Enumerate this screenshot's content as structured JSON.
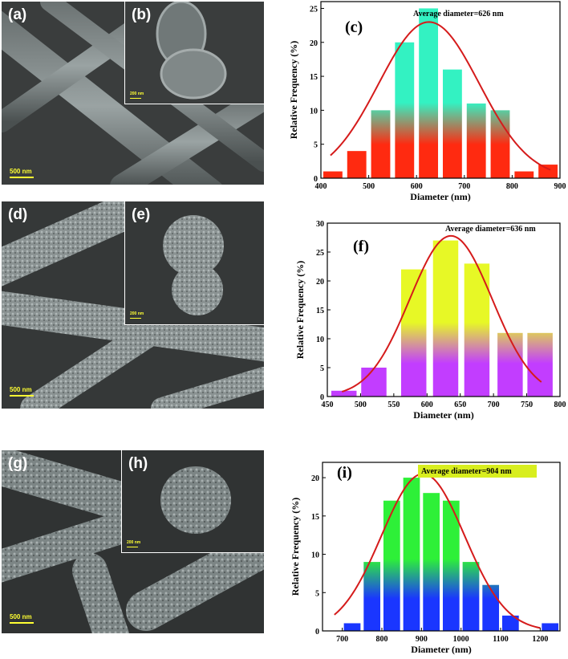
{
  "sem_panels": [
    {
      "main_label": "(a)",
      "inset_label": "(b)",
      "main_scale": "500 nm",
      "inset_scale": "200 nm",
      "style": "smooth"
    },
    {
      "main_label": "(d)",
      "inset_label": "(e)",
      "main_scale": "500 nm",
      "inset_scale": "200 nm",
      "style": "rough"
    },
    {
      "main_label": "(g)",
      "inset_label": "(h)",
      "main_scale": "500 nm",
      "inset_scale": "200 nm",
      "style": "rough"
    }
  ],
  "chart_data": [
    {
      "type": "bar",
      "panel_label": "(c)",
      "annotation": "Average diameter=626 nm",
      "xlabel": "Diameter (nm)",
      "ylabel": "Relative Frequency (%)",
      "xlim": [
        400,
        900
      ],
      "ylim": [
        0,
        26
      ],
      "xticks": [
        400,
        500,
        600,
        700,
        800,
        900
      ],
      "yticks": [
        0,
        5,
        10,
        15,
        20,
        25
      ],
      "bar_width": 40,
      "x": [
        425,
        475,
        525,
        575,
        625,
        675,
        725,
        775,
        825,
        875
      ],
      "values": [
        1,
        4,
        10,
        20,
        25,
        16,
        11,
        10,
        1,
        2
      ],
      "fit_curve": {
        "type": "gaussian",
        "mean": 626,
        "sigma": 105,
        "peak": 23,
        "x_range": [
          420,
          880
        ]
      },
      "colors": {
        "top": "#33f2c2",
        "bottom": "#ff2a10",
        "curve": "#d51b1b"
      }
    },
    {
      "type": "bar",
      "panel_label": "(f)",
      "annotation": "Average diameter=636 nm",
      "xlabel": "Diameter (nm)",
      "ylabel": "Relative Frequency (%)",
      "xlim": [
        450,
        800
      ],
      "ylim": [
        0,
        30
      ],
      "xticks": [
        450,
        500,
        550,
        600,
        650,
        700,
        750,
        800
      ],
      "yticks": [
        0,
        5,
        10,
        15,
        20,
        25,
        30
      ],
      "bar_width": 38,
      "x": [
        475,
        520,
        580,
        628,
        675,
        725,
        770
      ],
      "values": [
        1,
        5,
        22,
        27,
        23,
        11,
        11
      ],
      "fit_curve": {
        "type": "gaussian",
        "mean": 636,
        "sigma": 62,
        "peak": 27.8,
        "x_range": [
          472,
          772
        ]
      },
      "colors": {
        "top": "#e7f826",
        "bottom": "#c23dff",
        "curve": "#d51b1b"
      }
    },
    {
      "type": "bar",
      "panel_label": "(i)",
      "annotation": "Average diameter=904 nm",
      "xlabel": "Diameter (nm)",
      "ylabel": "Relative Frequency (%)",
      "xlim": [
        650,
        1250
      ],
      "ylim": [
        0,
        22
      ],
      "xticks": [
        700,
        800,
        900,
        1000,
        1100,
        1200
      ],
      "yticks": [
        0,
        5,
        10,
        15,
        20
      ],
      "bar_width": 42,
      "x": [
        725,
        775,
        825,
        875,
        925,
        975,
        1025,
        1075,
        1125,
        1225
      ],
      "values": [
        1,
        9,
        17,
        20,
        18,
        17,
        9,
        6,
        2,
        1
      ],
      "fit_curve": {
        "type": "gaussian",
        "mean": 904,
        "sigma": 105,
        "peak": 20.5,
        "x_range": [
          680,
          1200
        ]
      },
      "colors": {
        "top": "#2ef038",
        "bottom": "#1a36ff",
        "curve": "#d51b1b",
        "annotation_bg": "#d8ee1e"
      }
    }
  ]
}
